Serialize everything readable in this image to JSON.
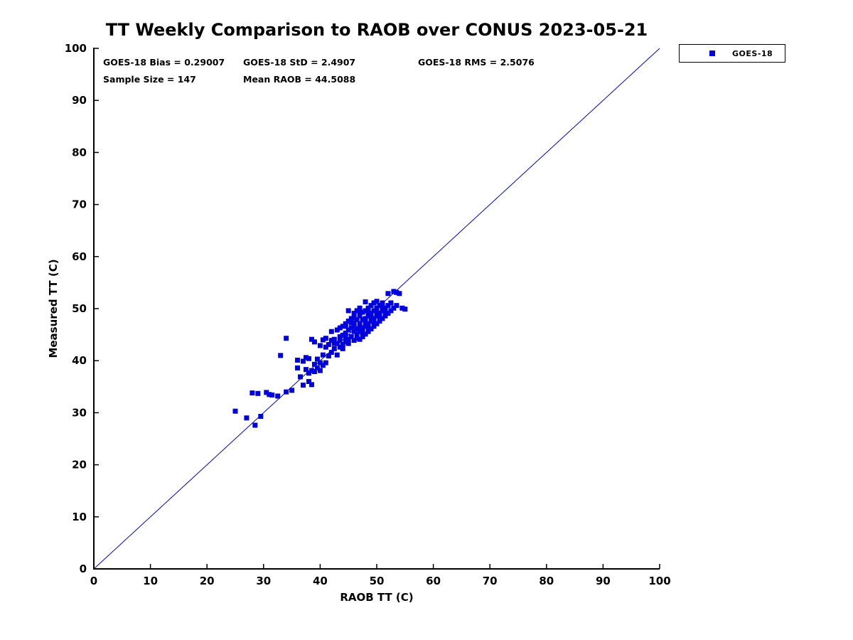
{
  "chart_data": {
    "type": "scatter",
    "title": "TT Weekly Comparison to RAOB over CONUS 2023-05-21",
    "xlabel": "RAOB TT (C)",
    "ylabel": "Measured TT (C)",
    "xlim": [
      0,
      100
    ],
    "ylim": [
      0,
      100
    ],
    "xticks": [
      0,
      10,
      20,
      30,
      40,
      50,
      60,
      70,
      80,
      90,
      100
    ],
    "yticks": [
      0,
      10,
      20,
      30,
      40,
      50,
      60,
      70,
      80,
      90,
      100
    ],
    "grid": false,
    "legend": {
      "label": "GOES-18",
      "position": "top-right-outside"
    },
    "marker": {
      "shape": "square",
      "color": "#0000e0",
      "size": 7
    },
    "reference_line": {
      "from": [
        0,
        0
      ],
      "to": [
        100,
        100
      ],
      "color": "#0000e0",
      "width": 1
    },
    "annotations": {
      "bias": "GOES-18 Bias = 0.29007",
      "std": "GOES-18 StD = 2.4907",
      "rms": "GOES-18 RMS = 2.5076",
      "sample_size": "Sample Size = 147",
      "mean_raob": "Mean RAOB = 44.5088"
    },
    "points": [
      [
        25,
        30.3
      ],
      [
        27,
        29
      ],
      [
        28.5,
        27.6
      ],
      [
        28,
        33.8
      ],
      [
        29,
        33.7
      ],
      [
        29.5,
        29.3
      ],
      [
        30.5,
        33.9
      ],
      [
        31,
        33.5
      ],
      [
        31.5,
        33.4
      ],
      [
        32.5,
        33.2
      ],
      [
        33,
        41
      ],
      [
        34,
        44.3
      ],
      [
        34,
        34
      ],
      [
        35,
        34.3
      ],
      [
        36,
        38.6
      ],
      [
        36,
        40.1
      ],
      [
        36.5,
        36.9
      ],
      [
        37,
        35.3
      ],
      [
        37,
        39.9
      ],
      [
        37.5,
        38.3
      ],
      [
        37.5,
        40.6
      ],
      [
        38,
        36
      ],
      [
        38,
        37.6
      ],
      [
        38,
        40.4
      ],
      [
        38.5,
        35.4
      ],
      [
        38.5,
        38.1
      ],
      [
        38.5,
        44.1
      ],
      [
        39,
        37.9
      ],
      [
        39,
        39.3
      ],
      [
        39,
        43.6
      ],
      [
        39.5,
        38.6
      ],
      [
        39.5,
        40.3
      ],
      [
        40,
        38.1
      ],
      [
        40,
        39.6
      ],
      [
        40,
        42.9
      ],
      [
        40.5,
        39.1
      ],
      [
        40.5,
        41.1
      ],
      [
        40.5,
        44
      ],
      [
        41,
        39.6
      ],
      [
        41,
        42.6
      ],
      [
        41,
        44.3
      ],
      [
        41.5,
        40.9
      ],
      [
        41.5,
        43.1
      ],
      [
        42,
        41.6
      ],
      [
        42,
        43.9
      ],
      [
        42,
        45.6
      ],
      [
        42.5,
        42.3
      ],
      [
        42.5,
        44.1
      ],
      [
        43,
        41.1
      ],
      [
        43,
        43.3
      ],
      [
        43,
        45.9
      ],
      [
        43.5,
        42.6
      ],
      [
        43.5,
        44.6
      ],
      [
        43.5,
        46.3
      ],
      [
        44,
        43.1
      ],
      [
        44,
        44.9
      ],
      [
        44,
        46.6
      ],
      [
        44.5,
        43.6
      ],
      [
        44.5,
        45.3
      ],
      [
        44.5,
        47.1
      ],
      [
        45,
        44.1
      ],
      [
        45,
        45.9
      ],
      [
        45,
        47.6
      ],
      [
        45,
        49.6
      ],
      [
        45.5,
        44.6
      ],
      [
        45.5,
        46.3
      ],
      [
        45.5,
        48.1
      ],
      [
        46,
        43.9
      ],
      [
        46,
        45.6
      ],
      [
        46,
        47.3
      ],
      [
        46,
        49.1
      ],
      [
        46.5,
        44.3
      ],
      [
        46.5,
        46.1
      ],
      [
        46.5,
        47.9
      ],
      [
        46.5,
        49.6
      ],
      [
        47,
        44.1
      ],
      [
        47,
        45.6
      ],
      [
        47,
        47.1
      ],
      [
        47,
        48.6
      ],
      [
        47,
        50.1
      ],
      [
        47.5,
        44.6
      ],
      [
        47.5,
        46.3
      ],
      [
        47.5,
        47.9
      ],
      [
        47.5,
        49.3
      ],
      [
        48,
        45.1
      ],
      [
        48,
        46.6
      ],
      [
        48,
        48.1
      ],
      [
        48,
        49.6
      ],
      [
        48,
        51.3
      ],
      [
        48.5,
        45.6
      ],
      [
        48.5,
        47.1
      ],
      [
        48.5,
        48.6
      ],
      [
        48.5,
        50.1
      ],
      [
        49,
        46.1
      ],
      [
        49,
        47.6
      ],
      [
        49,
        49.1
      ],
      [
        49,
        50.6
      ],
      [
        49.5,
        46.6
      ],
      [
        49.5,
        48.1
      ],
      [
        49.5,
        49.6
      ],
      [
        49.5,
        51.1
      ],
      [
        50,
        47.1
      ],
      [
        50,
        48.6
      ],
      [
        50,
        50.1
      ],
      [
        50.5,
        47.6
      ],
      [
        50.5,
        49.1
      ],
      [
        50.5,
        50.6
      ],
      [
        51,
        48.1
      ],
      [
        51,
        49.6
      ],
      [
        51,
        51.1
      ],
      [
        51.5,
        48.6
      ],
      [
        51.5,
        50.1
      ],
      [
        52,
        49.1
      ],
      [
        52,
        50.6
      ],
      [
        52,
        52.9
      ],
      [
        52.5,
        49.6
      ],
      [
        52.5,
        51.1
      ],
      [
        53,
        50.1
      ],
      [
        53,
        53.3
      ],
      [
        53.5,
        50.6
      ],
      [
        53.5,
        53.1
      ],
      [
        54,
        52.9
      ],
      [
        54.5,
        50.1
      ],
      [
        55,
        49.9
      ],
      [
        44,
        42.3
      ],
      [
        44.5,
        46.6
      ],
      [
        45,
        43.3
      ],
      [
        45.5,
        47.3
      ],
      [
        46,
        46.6
      ],
      [
        46.5,
        45.1
      ],
      [
        47,
        46.4
      ],
      [
        47.5,
        45.4
      ],
      [
        48,
        47.4
      ],
      [
        48.5,
        46.4
      ],
      [
        49,
        48.4
      ],
      [
        49.5,
        47.4
      ],
      [
        50,
        49.4
      ],
      [
        50.5,
        48.4
      ],
      [
        51,
        50.4
      ],
      [
        51.5,
        49.4
      ],
      [
        42.5,
        43.3
      ],
      [
        43.5,
        43.9
      ],
      [
        44.5,
        44.4
      ],
      [
        46,
        48.3
      ],
      [
        47,
        49.3
      ],
      [
        48.5,
        49.3
      ],
      [
        50,
        51.4
      ]
    ]
  }
}
